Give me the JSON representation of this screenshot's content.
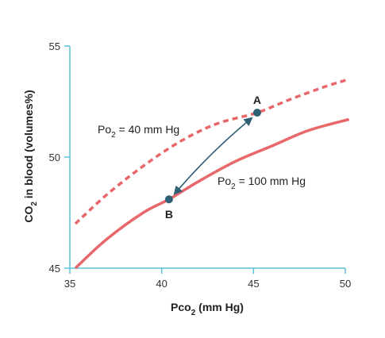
{
  "chart_data": {
    "type": "line",
    "xlabel_main": "Pco",
    "xlabel_sub": "2",
    "xlabel_units": " (mm Hg)",
    "ylabel_main": "CO",
    "ylabel_sub": "2",
    "ylabel_units": " in blood (volumes%)",
    "xlim": [
      35,
      50
    ],
    "ylim": [
      45,
      55
    ],
    "xticks": [
      35,
      40,
      45,
      50
    ],
    "yticks": [
      45,
      50,
      55
    ],
    "series": [
      {
        "label_main": "Po",
        "label_sub": "2",
        "label_value": " = 40 mm Hg",
        "style": "dashed",
        "color": "#e8676a",
        "x": [
          35.3,
          37,
          39,
          41,
          43,
          45.2,
          47,
          49,
          50.2
        ],
        "y": [
          47.0,
          48.3,
          49.6,
          50.7,
          51.5,
          52.0,
          52.6,
          53.2,
          53.5
        ]
      },
      {
        "label_main": "Po",
        "label_sub": "2",
        "label_value": " = 100 mm Hg",
        "style": "solid",
        "color": "#e8676a",
        "x": [
          35.3,
          37,
          39,
          40.4,
          42,
          44,
          46,
          48,
          50.2
        ],
        "y": [
          45.0,
          46.3,
          47.5,
          48.1,
          48.9,
          49.8,
          50.5,
          51.2,
          51.7
        ]
      }
    ],
    "points": [
      {
        "label": "A",
        "x": 45.2,
        "y": 52.0
      },
      {
        "label": "B",
        "x": 40.4,
        "y": 48.1
      }
    ],
    "arrow": {
      "from": "A",
      "to": "B",
      "bidirectional": true
    },
    "colors": {
      "axis": "#5bc0d6",
      "curve": "#e8676a",
      "point": "#2f5f73",
      "arrow": "#2f5f73"
    }
  }
}
